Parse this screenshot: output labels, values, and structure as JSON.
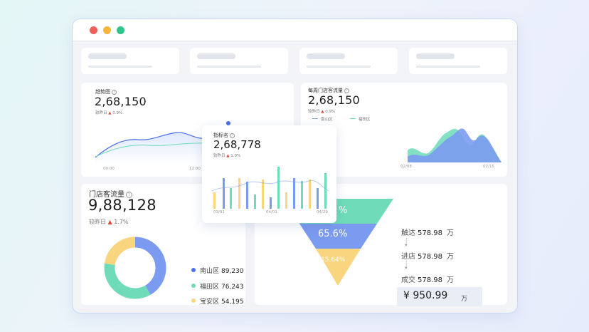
{
  "colors": {
    "blue": "#7a9bf0",
    "green": "#6fdbb8",
    "yellow": "#f8d57e",
    "up_arrow": "#e0463e",
    "close": "#f0605a",
    "minimize": "#f6b63c",
    "maximize": "#2fc58a"
  },
  "trend_card": {
    "title": "趋势图",
    "value": "2,68,150",
    "compare_label": "较昨日",
    "compare_value": "0.9%",
    "x_labels": [
      "00:00",
      "12:00"
    ]
  },
  "weekly_card": {
    "title": "每周门店客流量",
    "value": "2,68,150",
    "compare_label": "较昨日",
    "compare_value": "0.9%",
    "legend": [
      "南山区",
      "福田区"
    ],
    "x_labels": [
      "02/08",
      "02/15"
    ]
  },
  "store_card": {
    "title": "门店客流量",
    "value": "9,88,128",
    "compare_label": "较昨日",
    "compare_value": "1.7%",
    "legend": [
      {
        "name": "南山区",
        "value": "89,230",
        "color": "#4a6ff0"
      },
      {
        "name": "福田区",
        "value": "76,243",
        "color": "#6fdbb8"
      },
      {
        "name": "宝安区",
        "value": "54,195",
        "color": "#f8d57e"
      }
    ]
  },
  "popup_card": {
    "title": "指标名",
    "value": "2,68,778",
    "compare_label": "较昨日",
    "compare_value": "1.0%",
    "x_labels": [
      "03/01",
      "04/01",
      "04/29"
    ]
  },
  "funnel_card": {
    "stages": [
      {
        "percent": "%",
        "color": "#6fdbb8"
      },
      {
        "percent": "65.6%",
        "color": "#7a9bf0"
      },
      {
        "percent": "15.64%",
        "color": "#f8d57e"
      }
    ],
    "steps": [
      {
        "label": "触达",
        "value": "578.98",
        "unit": "万"
      },
      {
        "label": "进店",
        "value": "578.98",
        "unit": "万"
      },
      {
        "label": "成交",
        "value": "578.98",
        "unit": "万"
      }
    ],
    "total_value": "¥ 950.99",
    "total_unit": "万"
  }
}
